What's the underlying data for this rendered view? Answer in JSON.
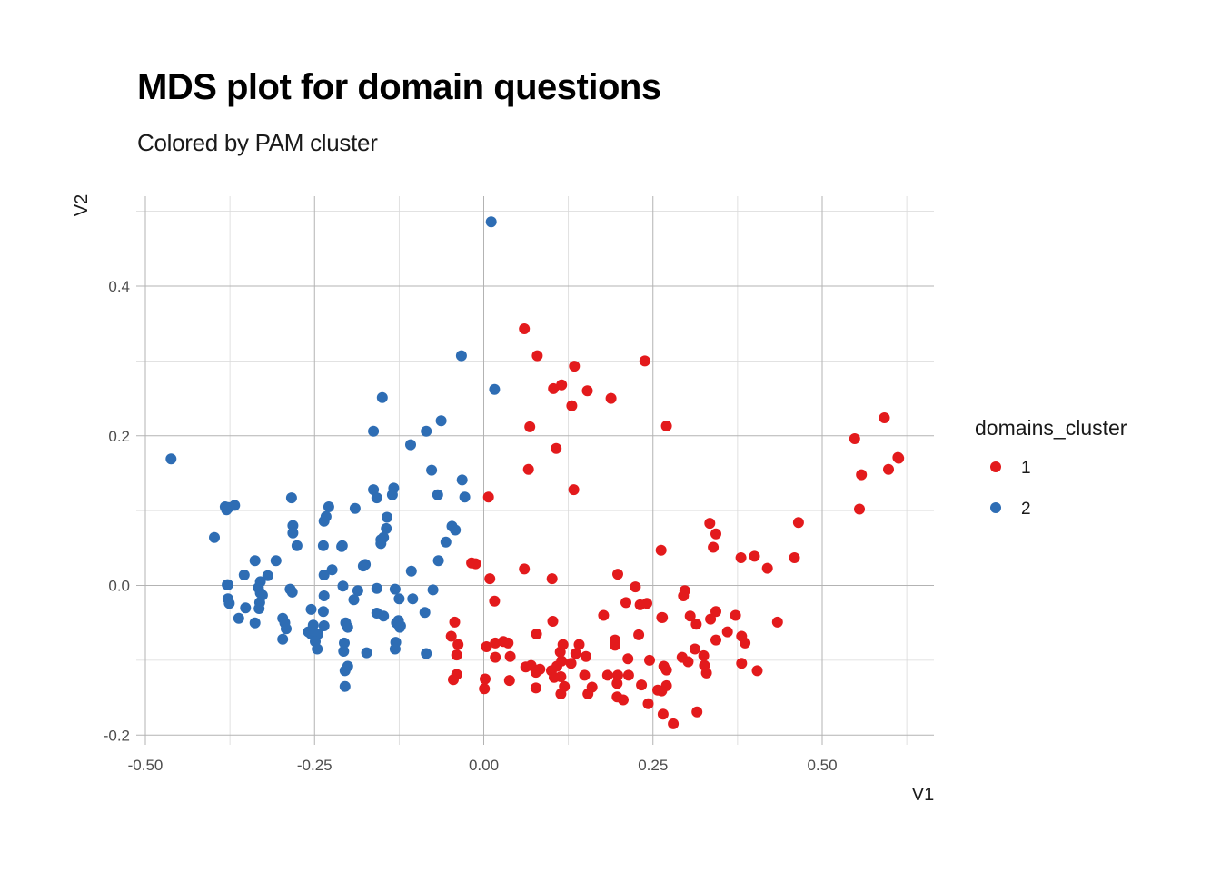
{
  "chart_data": {
    "type": "scatter",
    "title": "MDS plot for domain questions",
    "subtitle": "Colored by PAM cluster",
    "xlabel": "V1",
    "ylabel": "V2",
    "xlim": [
      -0.5,
      0.65
    ],
    "ylim": [
      -0.21,
      0.52
    ],
    "x_ticks": [
      -0.5,
      -0.25,
      0.0,
      0.25,
      0.5
    ],
    "x_tick_labels": [
      "-0.50",
      "-0.25",
      "0.00",
      "0.25",
      "0.50"
    ],
    "y_ticks": [
      -0.2,
      0.0,
      0.2,
      0.4
    ],
    "y_tick_labels": [
      "-0.2",
      "0.0",
      "0.2",
      "0.4"
    ],
    "grid": true,
    "legend": {
      "title": "domains_cluster",
      "position": "right"
    },
    "series": [
      {
        "name": "1",
        "color": "#E31A1C",
        "points": [
          [
            0.06,
            0.343
          ],
          [
            0.079,
            0.307
          ],
          [
            0.134,
            0.293
          ],
          [
            0.238,
            0.3
          ],
          [
            0.103,
            0.263
          ],
          [
            0.115,
            0.268
          ],
          [
            0.153,
            0.26
          ],
          [
            0.188,
            0.25
          ],
          [
            0.13,
            0.24
          ],
          [
            0.068,
            0.212
          ],
          [
            0.27,
            0.213
          ],
          [
            0.107,
            0.183
          ],
          [
            0.066,
            0.155
          ],
          [
            0.133,
            0.128
          ],
          [
            0.007,
            0.118
          ],
          [
            0.592,
            0.224
          ],
          [
            0.548,
            0.196
          ],
          [
            0.612,
            0.171
          ],
          [
            0.613,
            0.17
          ],
          [
            0.598,
            0.155
          ],
          [
            0.558,
            0.148
          ],
          [
            0.555,
            0.102
          ],
          [
            0.465,
            0.084
          ],
          [
            0.334,
            0.083
          ],
          [
            0.343,
            0.069
          ],
          [
            0.262,
            0.047
          ],
          [
            0.339,
            0.051
          ],
          [
            0.38,
            0.037
          ],
          [
            0.4,
            0.039
          ],
          [
            0.459,
            0.037
          ],
          [
            0.419,
            0.023
          ],
          [
            -0.018,
            0.03
          ],
          [
            -0.012,
            0.029
          ],
          [
            0.06,
            0.022
          ],
          [
            0.009,
            0.009
          ],
          [
            0.101,
            0.009
          ],
          [
            0.198,
            0.015
          ],
          [
            0.224,
            -0.002
          ],
          [
            0.297,
            -0.007
          ],
          [
            0.295,
            -0.014
          ],
          [
            0.016,
            -0.021
          ],
          [
            0.21,
            -0.023
          ],
          [
            0.231,
            -0.026
          ],
          [
            0.241,
            -0.024
          ],
          [
            0.263,
            -0.043
          ],
          [
            0.264,
            -0.043
          ],
          [
            0.177,
            -0.04
          ],
          [
            0.305,
            -0.041
          ],
          [
            0.372,
            -0.04
          ],
          [
            0.343,
            -0.035
          ],
          [
            0.434,
            -0.049
          ],
          [
            -0.043,
            -0.049
          ],
          [
            0.102,
            -0.048
          ],
          [
            0.314,
            -0.052
          ],
          [
            0.335,
            -0.045
          ],
          [
            0.36,
            -0.062
          ],
          [
            0.078,
            -0.065
          ],
          [
            -0.048,
            -0.068
          ],
          [
            0.194,
            -0.073
          ],
          [
            0.229,
            -0.066
          ],
          [
            0.343,
            -0.073
          ],
          [
            0.386,
            -0.077
          ],
          [
            0.381,
            -0.068
          ],
          [
            -0.038,
            -0.079
          ],
          [
            0.117,
            -0.079
          ],
          [
            0.017,
            -0.077
          ],
          [
            0.036,
            -0.077
          ],
          [
            0.029,
            -0.075
          ],
          [
            0.141,
            -0.079
          ],
          [
            0.194,
            -0.08
          ],
          [
            0.004,
            -0.082
          ],
          [
            0.312,
            -0.085
          ],
          [
            0.136,
            -0.091
          ],
          [
            0.113,
            -0.089
          ],
          [
            0.151,
            -0.095
          ],
          [
            0.213,
            -0.098
          ],
          [
            0.245,
            -0.1
          ],
          [
            -0.04,
            -0.093
          ],
          [
            0.017,
            -0.096
          ],
          [
            0.039,
            -0.095
          ],
          [
            0.129,
            -0.104
          ],
          [
            0.293,
            -0.096
          ],
          [
            0.325,
            -0.094
          ],
          [
            0.302,
            -0.102
          ],
          [
            0.062,
            -0.109
          ],
          [
            0.07,
            -0.107
          ],
          [
            0.083,
            -0.112
          ],
          [
            0.077,
            -0.116
          ],
          [
            0.1,
            -0.114
          ],
          [
            0.108,
            -0.108
          ],
          [
            0.115,
            -0.101
          ],
          [
            0.266,
            -0.108
          ],
          [
            0.27,
            -0.113
          ],
          [
            0.326,
            -0.107
          ],
          [
            0.381,
            -0.104
          ],
          [
            0.404,
            -0.114
          ],
          [
            0.329,
            -0.117
          ],
          [
            -0.04,
            -0.119
          ],
          [
            0.149,
            -0.12
          ],
          [
            0.104,
            -0.123
          ],
          [
            0.114,
            -0.122
          ],
          [
            0.183,
            -0.12
          ],
          [
            0.198,
            -0.12
          ],
          [
            0.214,
            -0.12
          ],
          [
            -0.045,
            -0.126
          ],
          [
            0.002,
            -0.125
          ],
          [
            0.038,
            -0.127
          ],
          [
            0.119,
            -0.135
          ],
          [
            0.197,
            -0.131
          ],
          [
            0.233,
            -0.133
          ],
          [
            0.27,
            -0.134
          ],
          [
            0.077,
            -0.137
          ],
          [
            0.16,
            -0.136
          ],
          [
            0.263,
            -0.141
          ],
          [
            0.001,
            -0.138
          ],
          [
            0.257,
            -0.14
          ],
          [
            0.114,
            -0.145
          ],
          [
            0.154,
            -0.145
          ],
          [
            0.197,
            -0.149
          ],
          [
            0.206,
            -0.153
          ],
          [
            0.243,
            -0.158
          ],
          [
            0.265,
            -0.172
          ],
          [
            0.315,
            -0.169
          ],
          [
            0.28,
            -0.185
          ]
        ]
      },
      {
        "name": "2",
        "color": "#2E6DB4",
        "points": [
          [
            0.011,
            0.486
          ],
          [
            -0.033,
            0.307
          ],
          [
            0.016,
            0.262
          ],
          [
            -0.15,
            0.251
          ],
          [
            -0.163,
            0.206
          ],
          [
            -0.063,
            0.22
          ],
          [
            -0.085,
            0.206
          ],
          [
            -0.108,
            0.188
          ],
          [
            -0.462,
            0.169
          ],
          [
            -0.077,
            0.154
          ],
          [
            -0.032,
            0.141
          ],
          [
            -0.163,
            0.128
          ],
          [
            -0.133,
            0.13
          ],
          [
            -0.135,
            0.121
          ],
          [
            -0.068,
            0.121
          ],
          [
            -0.028,
            0.118
          ],
          [
            -0.158,
            0.117
          ],
          [
            -0.284,
            0.117
          ],
          [
            -0.382,
            0.105
          ],
          [
            -0.377,
            0.104
          ],
          [
            -0.38,
            0.101
          ],
          [
            -0.368,
            0.107
          ],
          [
            -0.229,
            0.105
          ],
          [
            -0.19,
            0.103
          ],
          [
            -0.233,
            0.092
          ],
          [
            -0.236,
            0.086
          ],
          [
            -0.143,
            0.091
          ],
          [
            -0.282,
            0.08
          ],
          [
            -0.144,
            0.076
          ],
          [
            -0.047,
            0.079
          ],
          [
            -0.042,
            0.074
          ],
          [
            -0.282,
            0.07
          ],
          [
            -0.152,
            0.061
          ],
          [
            -0.148,
            0.064
          ],
          [
            -0.398,
            0.064
          ],
          [
            -0.056,
            0.058
          ],
          [
            -0.276,
            0.053
          ],
          [
            -0.237,
            0.053
          ],
          [
            -0.21,
            0.052
          ],
          [
            -0.209,
            0.053
          ],
          [
            -0.152,
            0.056
          ],
          [
            -0.338,
            0.033
          ],
          [
            -0.307,
            0.033
          ],
          [
            -0.175,
            0.028
          ],
          [
            -0.178,
            0.026
          ],
          [
            -0.067,
            0.033
          ],
          [
            -0.107,
            0.019
          ],
          [
            -0.224,
            0.021
          ],
          [
            -0.236,
            0.014
          ],
          [
            -0.354,
            0.014
          ],
          [
            -0.319,
            0.013
          ],
          [
            -0.378,
            0.001
          ],
          [
            -0.379,
            0.001
          ],
          [
            -0.33,
            0.005
          ],
          [
            -0.333,
            -0.003
          ],
          [
            -0.286,
            -0.005
          ],
          [
            -0.208,
            -0.001
          ],
          [
            -0.186,
            -0.007
          ],
          [
            -0.158,
            -0.004
          ],
          [
            -0.131,
            -0.005
          ],
          [
            -0.075,
            -0.006
          ],
          [
            -0.33,
            -0.01
          ],
          [
            -0.327,
            -0.013
          ],
          [
            -0.378,
            -0.018
          ],
          [
            -0.376,
            -0.024
          ],
          [
            -0.331,
            -0.023
          ],
          [
            -0.283,
            -0.009
          ],
          [
            -0.236,
            -0.014
          ],
          [
            -0.192,
            -0.019
          ],
          [
            -0.125,
            -0.018
          ],
          [
            -0.105,
            -0.018
          ],
          [
            -0.352,
            -0.03
          ],
          [
            -0.332,
            -0.031
          ],
          [
            -0.255,
            -0.032
          ],
          [
            -0.087,
            -0.036
          ],
          [
            -0.362,
            -0.044
          ],
          [
            -0.297,
            -0.044
          ],
          [
            -0.237,
            -0.035
          ],
          [
            -0.148,
            -0.041
          ],
          [
            -0.158,
            -0.037
          ],
          [
            -0.126,
            -0.047
          ],
          [
            -0.204,
            -0.05
          ],
          [
            -0.129,
            -0.05
          ],
          [
            -0.338,
            -0.05
          ],
          [
            -0.294,
            -0.05
          ],
          [
            -0.292,
            -0.058
          ],
          [
            -0.252,
            -0.053
          ],
          [
            -0.236,
            -0.054
          ],
          [
            -0.123,
            -0.054
          ],
          [
            -0.124,
            -0.056
          ],
          [
            -0.201,
            -0.056
          ],
          [
            -0.259,
            -0.062
          ],
          [
            -0.255,
            -0.065
          ],
          [
            -0.245,
            -0.065
          ],
          [
            -0.297,
            -0.072
          ],
          [
            -0.249,
            -0.075
          ],
          [
            -0.206,
            -0.077
          ],
          [
            -0.13,
            -0.076
          ],
          [
            -0.246,
            -0.085
          ],
          [
            -0.207,
            -0.088
          ],
          [
            -0.173,
            -0.09
          ],
          [
            -0.131,
            -0.085
          ],
          [
            -0.085,
            -0.091
          ],
          [
            -0.201,
            -0.108
          ],
          [
            -0.205,
            -0.114
          ],
          [
            -0.205,
            -0.135
          ]
        ]
      }
    ]
  }
}
